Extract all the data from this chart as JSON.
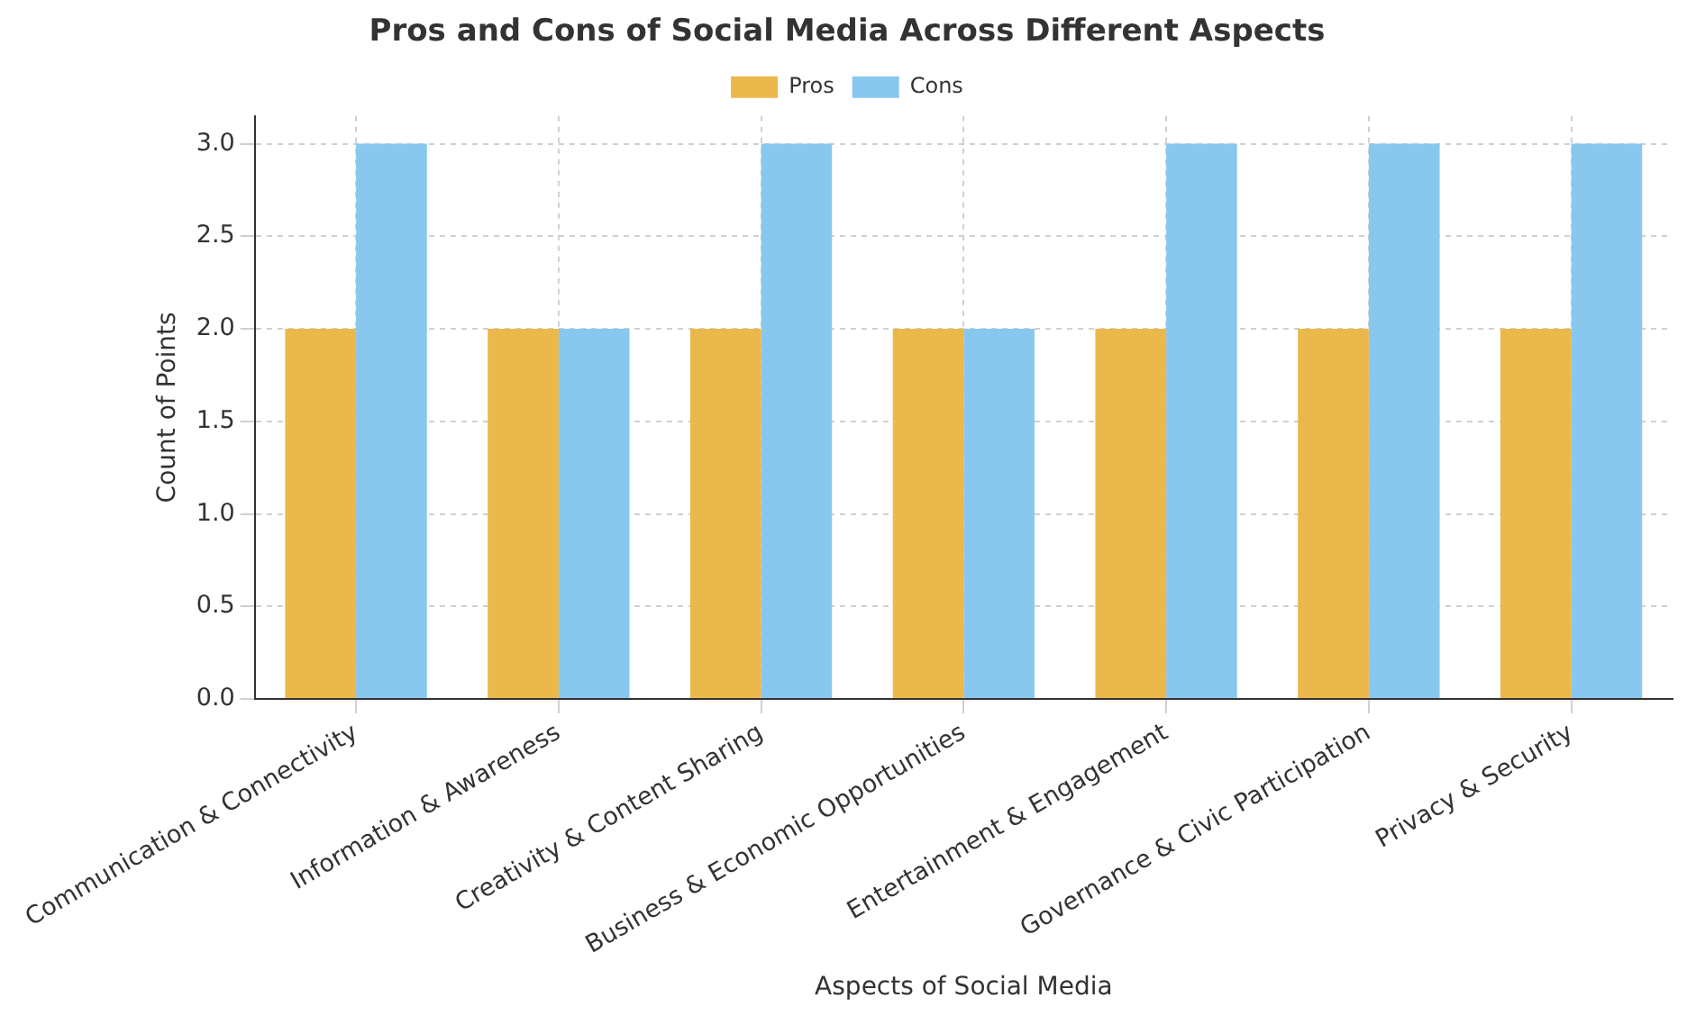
{
  "chart_data": {
    "type": "bar",
    "title": "Pros and Cons of Social Media Across Different Aspects",
    "xlabel": "Aspects of Social Media",
    "ylabel": "Count of Points",
    "categories": [
      "Communication & Connectivity",
      "Information & Awareness",
      "Creativity & Content Sharing",
      "Business & Economic Opportunities",
      "Entertainment & Engagement",
      "Governance & Civic Participation",
      "Privacy & Security"
    ],
    "series": [
      {
        "name": "Pros",
        "color": "#ebb84b",
        "values": [
          2,
          2,
          2,
          2,
          2,
          2,
          2
        ]
      },
      {
        "name": "Cons",
        "color": "#89c8ee",
        "values": [
          3,
          2,
          3,
          2,
          3,
          3,
          3
        ]
      }
    ],
    "ylim": [
      0,
      3.15
    ],
    "yticks": [
      {
        "value": 0,
        "label": "0.0"
      },
      {
        "value": 0.5,
        "label": "0.5"
      },
      {
        "value": 1,
        "label": "1.0"
      },
      {
        "value": 1.5,
        "label": "1.5"
      },
      {
        "value": 2,
        "label": "2.0"
      },
      {
        "value": 2.5,
        "label": "2.5"
      },
      {
        "value": 3,
        "label": "3.0"
      }
    ],
    "grid": true,
    "legend": "top"
  }
}
